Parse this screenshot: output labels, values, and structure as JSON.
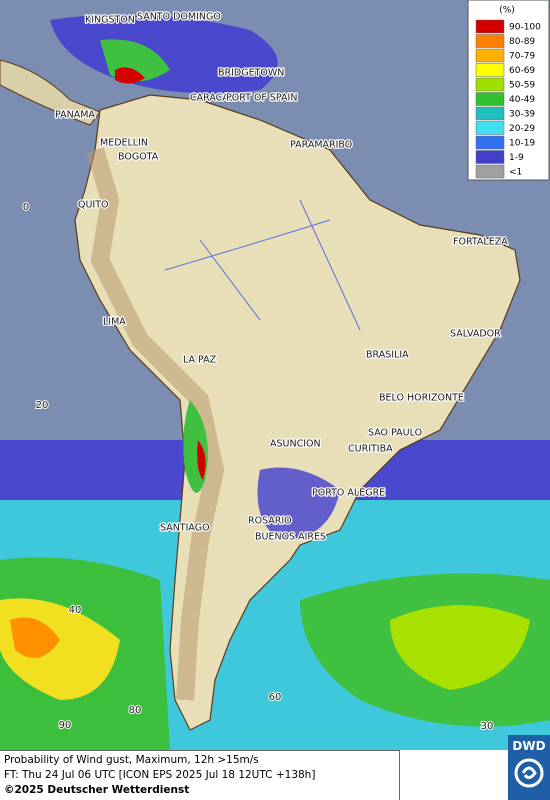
{
  "map": {
    "cities": [
      "KINGSTON",
      "SANTO DOMINGO",
      "BRIDGETOWN",
      "CARACAS",
      "PORT OF SPAIN",
      "PANAMA",
      "MEDELLIN",
      "BOGOTA",
      "PARAMARIBO",
      "QUITO",
      "FORTALEZA",
      "LIMA",
      "SALVADOR",
      "BRASILIA",
      "LA PAZ",
      "BELO HORIZONTE",
      "SAO PAULO",
      "ASUNCION",
      "CURITIBA",
      "PORTO ALEGRE",
      "ROSARIO",
      "BUENOS AIRES",
      "SANTIAGO"
    ],
    "graticule_labels": [
      "0",
      "20",
      "40",
      "90",
      "80",
      "60",
      "30"
    ]
  },
  "legend": {
    "title": "(%)",
    "entries": [
      {
        "label": "90-100",
        "color": "#d40000"
      },
      {
        "label": "80-89",
        "color": "#ff8000"
      },
      {
        "label": "70-79",
        "color": "#ffb000"
      },
      {
        "label": "60-69",
        "color": "#ffff00"
      },
      {
        "label": "50-59",
        "color": "#a0e000"
      },
      {
        "label": "40-49",
        "color": "#30c030"
      },
      {
        "label": "30-39",
        "color": "#20c0c0"
      },
      {
        "label": "20-29",
        "color": "#40e0f0"
      },
      {
        "label": "10-19",
        "color": "#3070f0"
      },
      {
        "label": "1-9",
        "color": "#4040c8"
      },
      {
        "label": "<1",
        "color": "#a0a0a0"
      }
    ]
  },
  "footer": {
    "lines": [
      "Probability of Wind gust, Maximum, 12h >15m/s",
      "FT: Thu 24 Jul 06 UTC [ICON EPS 2025 Jul 18 12UTC +138h]",
      "©2025 Deutscher Wetterdienst"
    ]
  },
  "logo": "DWD"
}
